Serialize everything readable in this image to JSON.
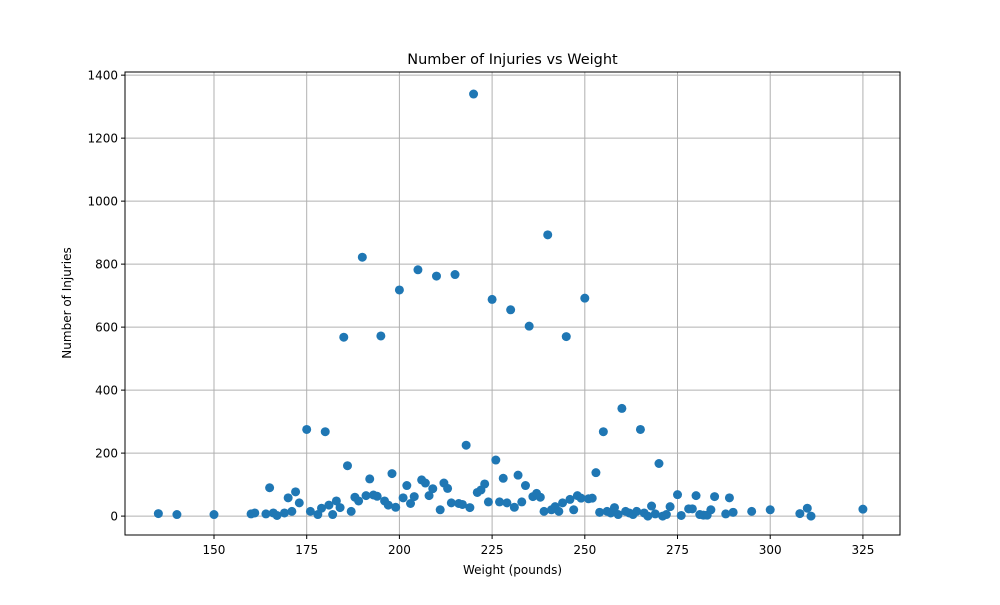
{
  "chart_data": {
    "type": "scatter",
    "title": "Number of Injuries vs Weight",
    "xlabel": "Weight (pounds)",
    "ylabel": "Number of Injuries",
    "xlim": [
      126,
      335
    ],
    "ylim": [
      -60,
      1410
    ],
    "xticks": [
      150,
      175,
      200,
      225,
      250,
      275,
      300,
      325
    ],
    "yticks": [
      0,
      200,
      400,
      600,
      800,
      1000,
      1200,
      1400
    ],
    "grid": true,
    "marker_color": "#1f77b4",
    "points": [
      [
        135,
        8
      ],
      [
        140,
        5
      ],
      [
        150,
        5
      ],
      [
        160,
        7
      ],
      [
        161,
        10
      ],
      [
        164,
        7
      ],
      [
        165,
        90
      ],
      [
        166,
        10
      ],
      [
        167,
        2
      ],
      [
        169,
        10
      ],
      [
        170,
        58
      ],
      [
        171,
        15
      ],
      [
        172,
        77
      ],
      [
        173,
        42
      ],
      [
        175,
        275
      ],
      [
        176,
        15
      ],
      [
        178,
        5
      ],
      [
        179,
        25
      ],
      [
        180,
        268
      ],
      [
        181,
        35
      ],
      [
        182,
        5
      ],
      [
        183,
        48
      ],
      [
        184,
        27
      ],
      [
        185,
        568
      ],
      [
        186,
        160
      ],
      [
        187,
        15
      ],
      [
        188,
        60
      ],
      [
        189,
        48
      ],
      [
        190,
        822
      ],
      [
        191,
        65
      ],
      [
        192,
        118
      ],
      [
        193,
        67
      ],
      [
        194,
        63
      ],
      [
        195,
        572
      ],
      [
        196,
        48
      ],
      [
        197,
        35
      ],
      [
        198,
        135
      ],
      [
        199,
        28
      ],
      [
        200,
        718
      ],
      [
        201,
        58
      ],
      [
        202,
        97
      ],
      [
        203,
        40
      ],
      [
        204,
        62
      ],
      [
        205,
        782
      ],
      [
        206,
        115
      ],
      [
        207,
        105
      ],
      [
        208,
        65
      ],
      [
        209,
        87
      ],
      [
        210,
        762
      ],
      [
        211,
        20
      ],
      [
        212,
        105
      ],
      [
        213,
        88
      ],
      [
        214,
        42
      ],
      [
        215,
        767
      ],
      [
        216,
        40
      ],
      [
        217,
        37
      ],
      [
        218,
        225
      ],
      [
        219,
        27
      ],
      [
        220,
        1340
      ],
      [
        221,
        75
      ],
      [
        222,
        83
      ],
      [
        223,
        102
      ],
      [
        224,
        45
      ],
      [
        225,
        688
      ],
      [
        226,
        178
      ],
      [
        227,
        45
      ],
      [
        228,
        120
      ],
      [
        229,
        42
      ],
      [
        230,
        655
      ],
      [
        231,
        28
      ],
      [
        232,
        130
      ],
      [
        233,
        45
      ],
      [
        234,
        97
      ],
      [
        235,
        603
      ],
      [
        236,
        62
      ],
      [
        237,
        72
      ],
      [
        238,
        60
      ],
      [
        239,
        15
      ],
      [
        240,
        893
      ],
      [
        241,
        20
      ],
      [
        242,
        30
      ],
      [
        243,
        15
      ],
      [
        244,
        42
      ],
      [
        245,
        570
      ],
      [
        246,
        53
      ],
      [
        247,
        20
      ],
      [
        248,
        65
      ],
      [
        249,
        57
      ],
      [
        250,
        692
      ],
      [
        251,
        55
      ],
      [
        252,
        57
      ],
      [
        253,
        138
      ],
      [
        254,
        12
      ],
      [
        255,
        268
      ],
      [
        256,
        15
      ],
      [
        257,
        10
      ],
      [
        258,
        27
      ],
      [
        259,
        5
      ],
      [
        260,
        342
      ],
      [
        261,
        15
      ],
      [
        262,
        10
      ],
      [
        263,
        5
      ],
      [
        264,
        15
      ],
      [
        265,
        275
      ],
      [
        266,
        10
      ],
      [
        267,
        0
      ],
      [
        268,
        32
      ],
      [
        269,
        7
      ],
      [
        270,
        167
      ],
      [
        271,
        0
      ],
      [
        272,
        5
      ],
      [
        273,
        30
      ],
      [
        275,
        68
      ],
      [
        276,
        2
      ],
      [
        278,
        23
      ],
      [
        279,
        23
      ],
      [
        280,
        65
      ],
      [
        281,
        5
      ],
      [
        282,
        3
      ],
      [
        283,
        3
      ],
      [
        284,
        20
      ],
      [
        285,
        62
      ],
      [
        288,
        7
      ],
      [
        289,
        58
      ],
      [
        290,
        12
      ],
      [
        295,
        15
      ],
      [
        300,
        20
      ],
      [
        308,
        8
      ],
      [
        310,
        25
      ],
      [
        311,
        0
      ],
      [
        325,
        22
      ]
    ]
  }
}
